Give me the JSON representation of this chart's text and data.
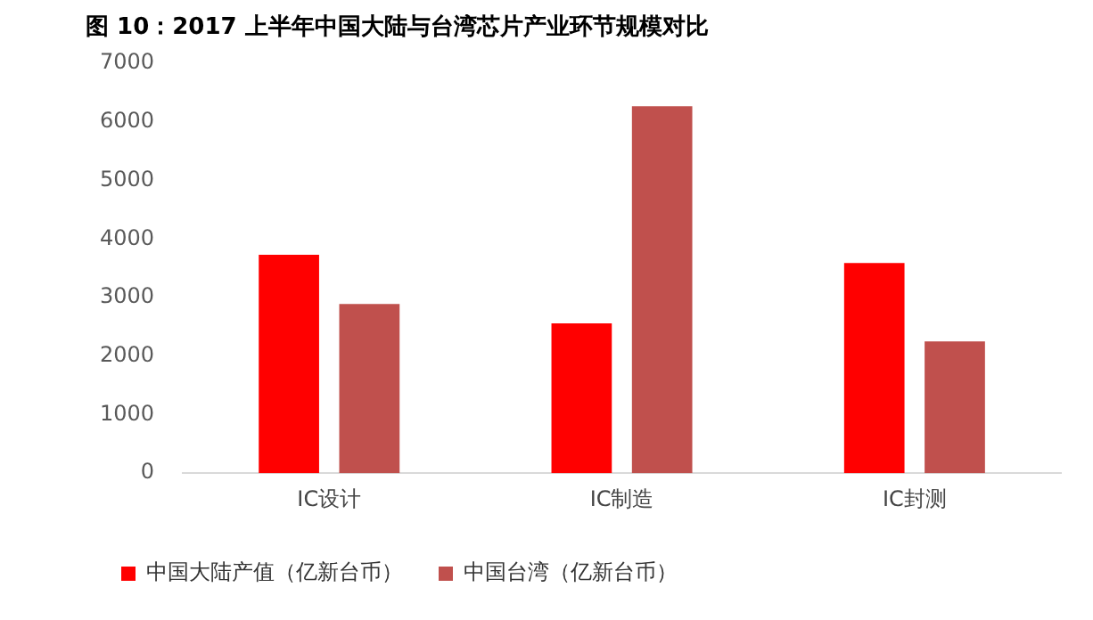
{
  "chart_data": {
    "type": "bar",
    "title": "图 10：2017 上半年中国大陆与台湾芯片产业环节规模对比",
    "categories": [
      "IC设计",
      "IC制造",
      "IC封测"
    ],
    "series": [
      {
        "name": "中国大陆产值（亿新台币）",
        "color": "#ff0000",
        "values": [
          3730,
          2560,
          3590
        ]
      },
      {
        "name": "中国台湾（亿新台币）",
        "color": "#c0504d",
        "values": [
          2890,
          6270,
          2250
        ]
      }
    ],
    "ylim": [
      0,
      7000
    ],
    "yticks": [
      0,
      1000,
      2000,
      3000,
      4000,
      5000,
      6000,
      7000
    ],
    "grid": false,
    "legend": "bottom"
  }
}
